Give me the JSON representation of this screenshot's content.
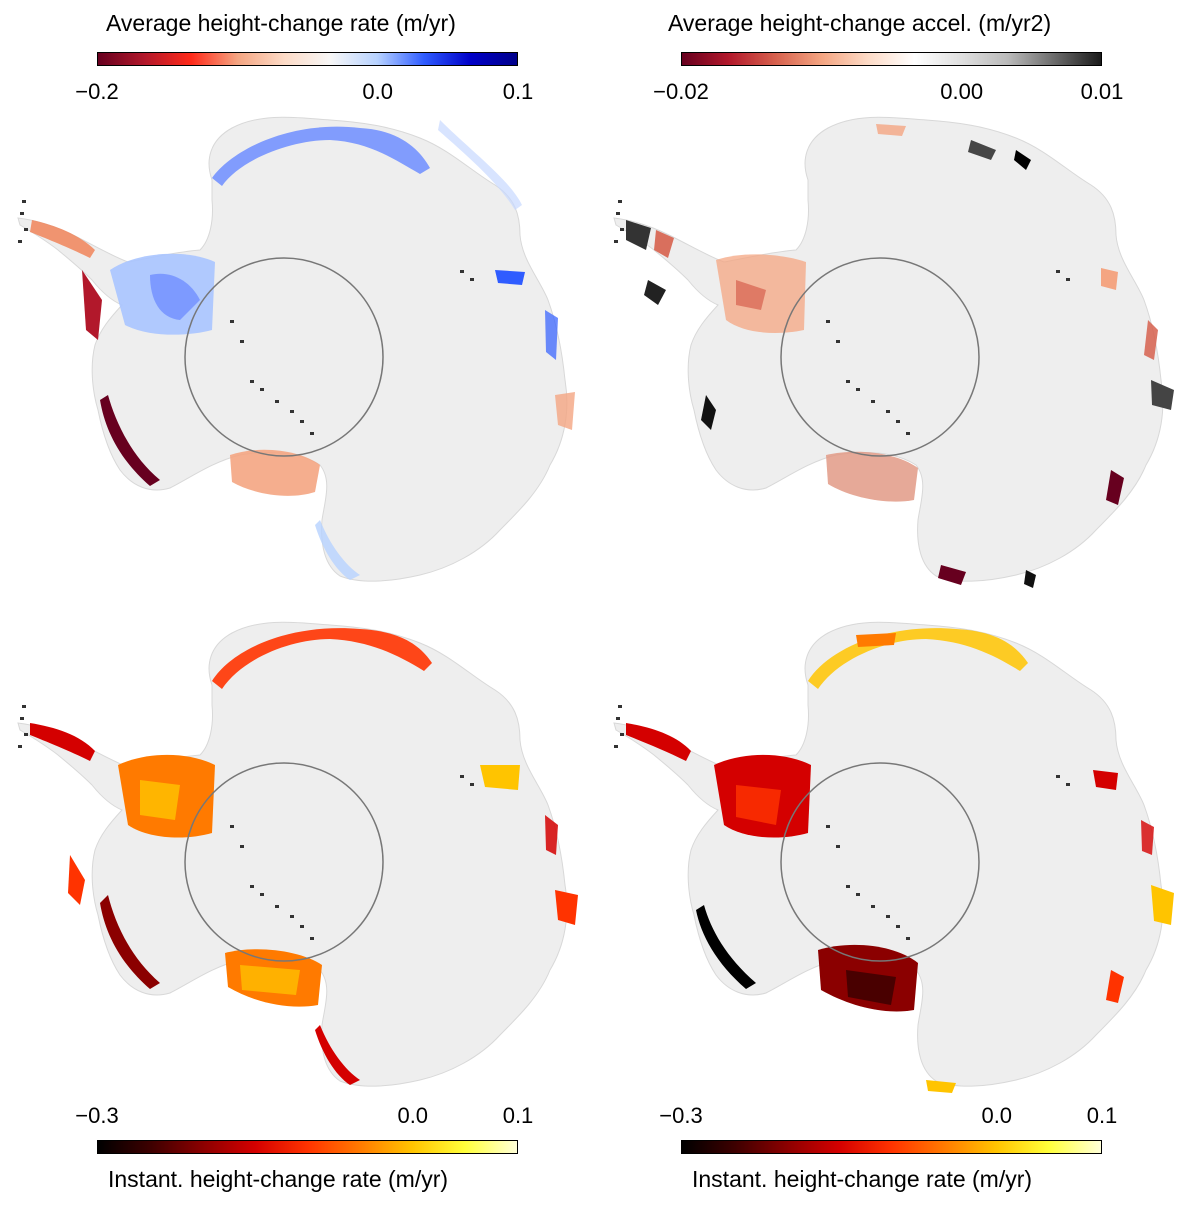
{
  "panels": [
    {
      "id": "avg-rate",
      "colorbar": {
        "title": "Average height-change rate (m/yr)",
        "position": "top",
        "ticks": [
          "−0.2",
          "0.0",
          "0.1"
        ],
        "range": [
          -0.2,
          0.1
        ],
        "tick_values": [
          -0.2,
          0.0,
          0.1
        ],
        "colors": [
          "#67001f",
          "#b2182b",
          "#ff2a1a",
          "#f4a582",
          "#fddbc7",
          "#f7f7f7",
          "#b7d2ff",
          "#2f5cff",
          "#0000c8",
          "#00008a"
        ]
      }
    },
    {
      "id": "avg-accel",
      "colorbar": {
        "title": "Average height-change accel. (m/yr2)",
        "position": "top",
        "ticks": [
          "−0.02",
          "0.00",
          "0.01"
        ],
        "range": [
          -0.02,
          0.01
        ],
        "tick_values": [
          -0.02,
          0.0,
          0.01
        ],
        "colors": [
          "#67001f",
          "#b2182b",
          "#d6604d",
          "#f4a582",
          "#fddbc7",
          "#ffffff",
          "#e0e0e0",
          "#bababa",
          "#6b6b6b",
          "#1a1a1a"
        ]
      }
    },
    {
      "id": "instant-rate-1",
      "colorbar": {
        "title": "Instant. height-change rate (m/yr)",
        "position": "bottom",
        "ticks": [
          "−0.3",
          "0.0",
          "0.1"
        ],
        "range": [
          -0.3,
          0.1
        ],
        "tick_values": [
          -0.3,
          0.0,
          0.1
        ],
        "colors": [
          "#000000",
          "#3d0000",
          "#8b0000",
          "#d40000",
          "#ff3300",
          "#ff7a00",
          "#ffc400",
          "#ffff3a",
          "#ffffd9"
        ]
      }
    },
    {
      "id": "instant-rate-2",
      "colorbar": {
        "title": "Instant. height-change rate (m/yr)",
        "position": "bottom",
        "ticks": [
          "−0.3",
          "0.0",
          "0.1"
        ],
        "range": [
          -0.3,
          0.1
        ],
        "tick_values": [
          -0.3,
          0.0,
          0.1
        ],
        "colors": [
          "#000000",
          "#3d0000",
          "#8b0000",
          "#d40000",
          "#ff3300",
          "#ff7a00",
          "#ffc400",
          "#ffff3a",
          "#ffffd9"
        ]
      }
    }
  ],
  "map_colors": {
    "land": "#eeeeee",
    "pole_circle": "#777777",
    "peninsula_speckle": "#333333"
  }
}
